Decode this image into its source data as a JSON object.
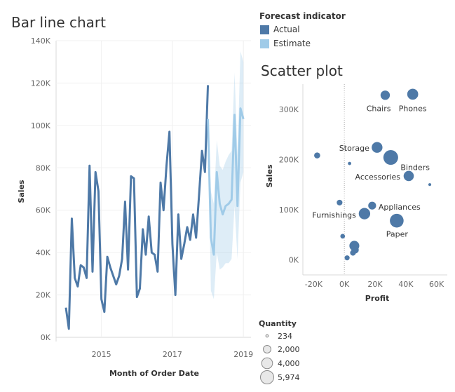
{
  "chart_data": [
    {
      "type": "line",
      "title": "Bar line chart",
      "xlabel": "Month of Order Date",
      "ylabel": "Sales",
      "ylim": [
        0,
        140000
      ],
      "y_ticks": [
        "0K",
        "20K",
        "40K",
        "60K",
        "80K",
        "100K",
        "120K",
        "140K"
      ],
      "x_ticks": [
        "2015",
        "2017",
        "2019"
      ],
      "x_start": "2014-01",
      "legend": {
        "title": "Forecast indicator",
        "entries": [
          {
            "name": "Actual",
            "color": "#4e79a7"
          },
          {
            "name": "Estimate",
            "color": "#a0cbe8"
          }
        ]
      },
      "series": [
        {
          "name": "Actual",
          "color": "#4e79a7",
          "values": [
            14000,
            4000,
            56000,
            28000,
            24000,
            34000,
            33000,
            28000,
            81000,
            31000,
            78000,
            69000,
            18000,
            12000,
            38000,
            33000,
            29000,
            25000,
            29000,
            37000,
            64000,
            32000,
            76000,
            75000,
            19000,
            23000,
            51000,
            39000,
            57000,
            40000,
            39000,
            31000,
            73000,
            60000,
            81000,
            97000,
            44000,
            20000,
            58000,
            37000,
            44000,
            52000,
            46000,
            58000,
            47000,
            67000,
            88000,
            78000,
            119000
          ]
        },
        {
          "name": "Estimate",
          "color": "#a0cbe8",
          "start_index": 48,
          "values": [
            103000,
            47000,
            39000,
            78000,
            63000,
            58000,
            62000,
            63000,
            65000,
            105000,
            62000,
            108000,
            103000
          ],
          "band_low": [
            103000,
            22000,
            18000,
            40000,
            32000,
            33000,
            35000,
            35000,
            37000,
            62000,
            37000,
            73000,
            78000
          ],
          "band_high": [
            103000,
            69000,
            63000,
            93000,
            81000,
            79000,
            83000,
            86000,
            88000,
            125000,
            86000,
            135000,
            130000
          ]
        }
      ]
    },
    {
      "type": "scatter",
      "title": "Scatter plot",
      "xlabel": "Profit",
      "ylabel": "Sales",
      "xlim": [
        -27000,
        67000
      ],
      "ylim": [
        -30000,
        350000
      ],
      "x_ticks": [
        "-20K",
        "0K",
        "20K",
        "40K",
        "60K"
      ],
      "y_ticks": [
        "0K",
        "100K",
        "200K",
        "300K"
      ],
      "size_legend": {
        "title": "Quantity",
        "labels": [
          "234",
          "2,000",
          "4,000",
          "5,974"
        ],
        "values": [
          234,
          2000,
          4000,
          5974
        ]
      },
      "points": [
        {
          "label": "Chairs",
          "x": 26600,
          "y": 328000,
          "q": 2400
        },
        {
          "label": "Phones",
          "x": 44500,
          "y": 330000,
          "q": 3300
        },
        {
          "label": "Storage",
          "x": 21300,
          "y": 224000,
          "q": 3200
        },
        {
          "label": "Binders",
          "x": 30200,
          "y": 204000,
          "q": 6000
        },
        {
          "label": "Accessories",
          "x": 41900,
          "y": 167000,
          "q": 2900
        },
        {
          "label": "Appliances",
          "x": 18100,
          "y": 108000,
          "q": 1700
        },
        {
          "label": "Furnishings",
          "x": 13100,
          "y": 92000,
          "q": 3600
        },
        {
          "label": "Paper",
          "x": 34100,
          "y": 78000,
          "q": 5200
        },
        {
          "label": "",
          "x": -17700,
          "y": 208000,
          "q": 1000
        },
        {
          "label": "",
          "x": 3400,
          "y": 192000,
          "q": 300
        },
        {
          "label": "",
          "x": 55600,
          "y": 150000,
          "q": 234
        },
        {
          "label": "",
          "x": -3100,
          "y": 114000,
          "q": 900
        },
        {
          "label": "",
          "x": -1100,
          "y": 47000,
          "q": 600
        },
        {
          "label": "",
          "x": 6500,
          "y": 28000,
          "q": 2700
        },
        {
          "label": "",
          "x": 7000,
          "y": 20000,
          "q": 1500
        },
        {
          "label": "",
          "x": 5600,
          "y": 14000,
          "q": 900
        },
        {
          "label": "",
          "x": 1800,
          "y": 4000,
          "q": 700
        }
      ]
    }
  ]
}
